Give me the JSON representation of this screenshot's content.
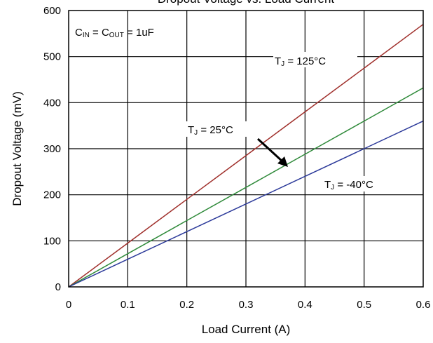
{
  "chart_data": {
    "type": "line",
    "title": "Dropout Voltage vs. Load Current",
    "xlabel": "Load Current (A)",
    "ylabel": "Dropout Voltage  (mV)",
    "xlim": [
      0,
      0.6
    ],
    "ylim": [
      0,
      600
    ],
    "x_ticks": [
      0,
      0.1,
      0.2,
      0.3,
      0.4,
      0.5,
      0.6
    ],
    "x_tick_labels": [
      "0",
      "0.1",
      "0.2",
      "0.3",
      "0.4",
      "0.5",
      "0.6"
    ],
    "y_ticks": [
      0,
      100,
      200,
      300,
      400,
      500,
      600
    ],
    "y_tick_labels": [
      "0",
      "100",
      "200",
      "300",
      "400",
      "500",
      "600"
    ],
    "grid": true,
    "series": [
      {
        "name": "TJ = 125°C",
        "color": "#a0302c",
        "x": [
          0,
          0.1,
          0.2,
          0.3,
          0.4,
          0.5,
          0.6
        ],
        "y": [
          0,
          95,
          190,
          285,
          380,
          475,
          570
        ]
      },
      {
        "name": "TJ = 25°C",
        "color": "#2f8a3a",
        "x": [
          0,
          0.1,
          0.2,
          0.3,
          0.4,
          0.5,
          0.6
        ],
        "y": [
          0,
          72,
          144,
          216,
          288,
          360,
          432
        ]
      },
      {
        "name": "TJ = -40°C",
        "color": "#2c3a9a",
        "x": [
          0,
          0.1,
          0.2,
          0.3,
          0.4,
          0.5,
          0.6
        ],
        "y": [
          0,
          60,
          120,
          180,
          240,
          300,
          360
        ]
      }
    ],
    "annotations": {
      "condition": {
        "main": "C",
        "sub1": "IN",
        "mid": " = C",
        "sub2": "OUT",
        "tail": " = 1uF"
      },
      "label_125": {
        "pre": "T",
        "sub": "J",
        "post": " = 125°C"
      },
      "label_25": {
        "pre": "T",
        "sub": "J",
        "post": " = 25°C"
      },
      "label_m40": {
        "pre": "T",
        "sub": "J",
        "post": " = -40°C"
      }
    }
  }
}
